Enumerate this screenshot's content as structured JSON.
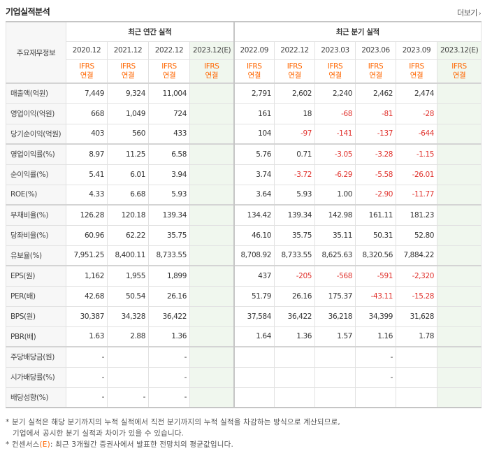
{
  "header": {
    "title": "기업실적분석",
    "more_label": "더보기",
    "more_arrow": "›"
  },
  "table": {
    "main_label": "주요재무정보",
    "annual_group": "최근 연간 실적",
    "quarter_group": "최근 분기 실적",
    "annual_periods": [
      "2020.12",
      "2021.12",
      "2022.12",
      "2023.12(E)"
    ],
    "quarter_periods": [
      "2022.09",
      "2022.12",
      "2023.03",
      "2023.06",
      "2023.09",
      "2023.12(E)"
    ],
    "ifrs_line1": "IFRS",
    "ifrs_line2": "연결",
    "rows": [
      {
        "label": "매출액(억원)",
        "values": [
          "7,449",
          "9,324",
          "11,004",
          "",
          "2,791",
          "2,602",
          "2,240",
          "2,462",
          "2,474",
          ""
        ]
      },
      {
        "label": "영업이익(억원)",
        "values": [
          "668",
          "1,049",
          "724",
          "",
          "161",
          "18",
          "-68",
          "-81",
          "-28",
          ""
        ]
      },
      {
        "label": "당기순이익(억원)",
        "values": [
          "403",
          "560",
          "433",
          "",
          "104",
          "-97",
          "-141",
          "-137",
          "-644",
          ""
        ]
      },
      {
        "label": "영업이익률(%)",
        "values": [
          "8.97",
          "11.25",
          "6.58",
          "",
          "5.76",
          "0.71",
          "-3.05",
          "-3.28",
          "-1.15",
          ""
        ]
      },
      {
        "label": "순이익률(%)",
        "values": [
          "5.41",
          "6.01",
          "3.94",
          "",
          "3.74",
          "-3.72",
          "-6.29",
          "-5.58",
          "-26.01",
          ""
        ]
      },
      {
        "label": "ROE(%)",
        "values": [
          "4.33",
          "6.68",
          "5.93",
          "",
          "3.64",
          "5.93",
          "1.00",
          "-2.90",
          "-11.77",
          ""
        ]
      },
      {
        "label": "부채비율(%)",
        "values": [
          "126.28",
          "120.18",
          "139.34",
          "",
          "134.42",
          "139.34",
          "142.98",
          "161.11",
          "181.23",
          ""
        ]
      },
      {
        "label": "당좌비율(%)",
        "values": [
          "60.96",
          "62.22",
          "35.75",
          "",
          "46.10",
          "35.75",
          "35.11",
          "50.31",
          "52.80",
          ""
        ]
      },
      {
        "label": "유보율(%)",
        "values": [
          "7,951.25",
          "8,400.11",
          "8,733.55",
          "",
          "8,708.92",
          "8,733.55",
          "8,625.63",
          "8,320.56",
          "7,884.22",
          ""
        ]
      },
      {
        "label": "EPS(원)",
        "values": [
          "1,162",
          "1,955",
          "1,899",
          "",
          "437",
          "-205",
          "-568",
          "-591",
          "-2,320",
          ""
        ]
      },
      {
        "label": "PER(배)",
        "values": [
          "42.68",
          "50.54",
          "26.16",
          "",
          "51.79",
          "26.16",
          "175.37",
          "-43.11",
          "-15.28",
          ""
        ]
      },
      {
        "label": "BPS(원)",
        "values": [
          "30,387",
          "34,328",
          "36,422",
          "",
          "37,584",
          "36,422",
          "36,218",
          "34,399",
          "31,628",
          ""
        ]
      },
      {
        "label": "PBR(배)",
        "values": [
          "1.63",
          "2.88",
          "1.36",
          "",
          "1.64",
          "1.36",
          "1.57",
          "1.16",
          "1.78",
          ""
        ]
      },
      {
        "label": "주당배당금(원)",
        "values": [
          "-",
          "",
          "-",
          "",
          "",
          "",
          "",
          "-",
          "",
          ""
        ]
      },
      {
        "label": "시가배당률(%)",
        "values": [
          "-",
          "",
          "-",
          "",
          "",
          "",
          "",
          "-",
          "",
          ""
        ]
      },
      {
        "label": "배당성향(%)",
        "values": [
          "-",
          "-",
          "-",
          "",
          "",
          "",
          "",
          "",
          "",
          ""
        ]
      }
    ]
  },
  "notes": {
    "line1": "* 분기 실적은 해당 분기까지의 누적 실적에서 직전 분기까지의 누적 실적을 차감하는 방식으로 계산되므로,",
    "line2": "기업에서 공시한 분기 실적과 차이가 있을 수 있습니다.",
    "line3_prefix": "* 컨센서스",
    "line3_mark": "(E)",
    "line3_suffix": ": 최근 3개월간 증권사에서 발표한 전망치의 평균값입니다."
  },
  "colors": {
    "negative": "#e0322d",
    "ifrs": "#ff6600",
    "estimate_bg": "#f0f7ee",
    "label_bg": "#f7f7f7"
  }
}
